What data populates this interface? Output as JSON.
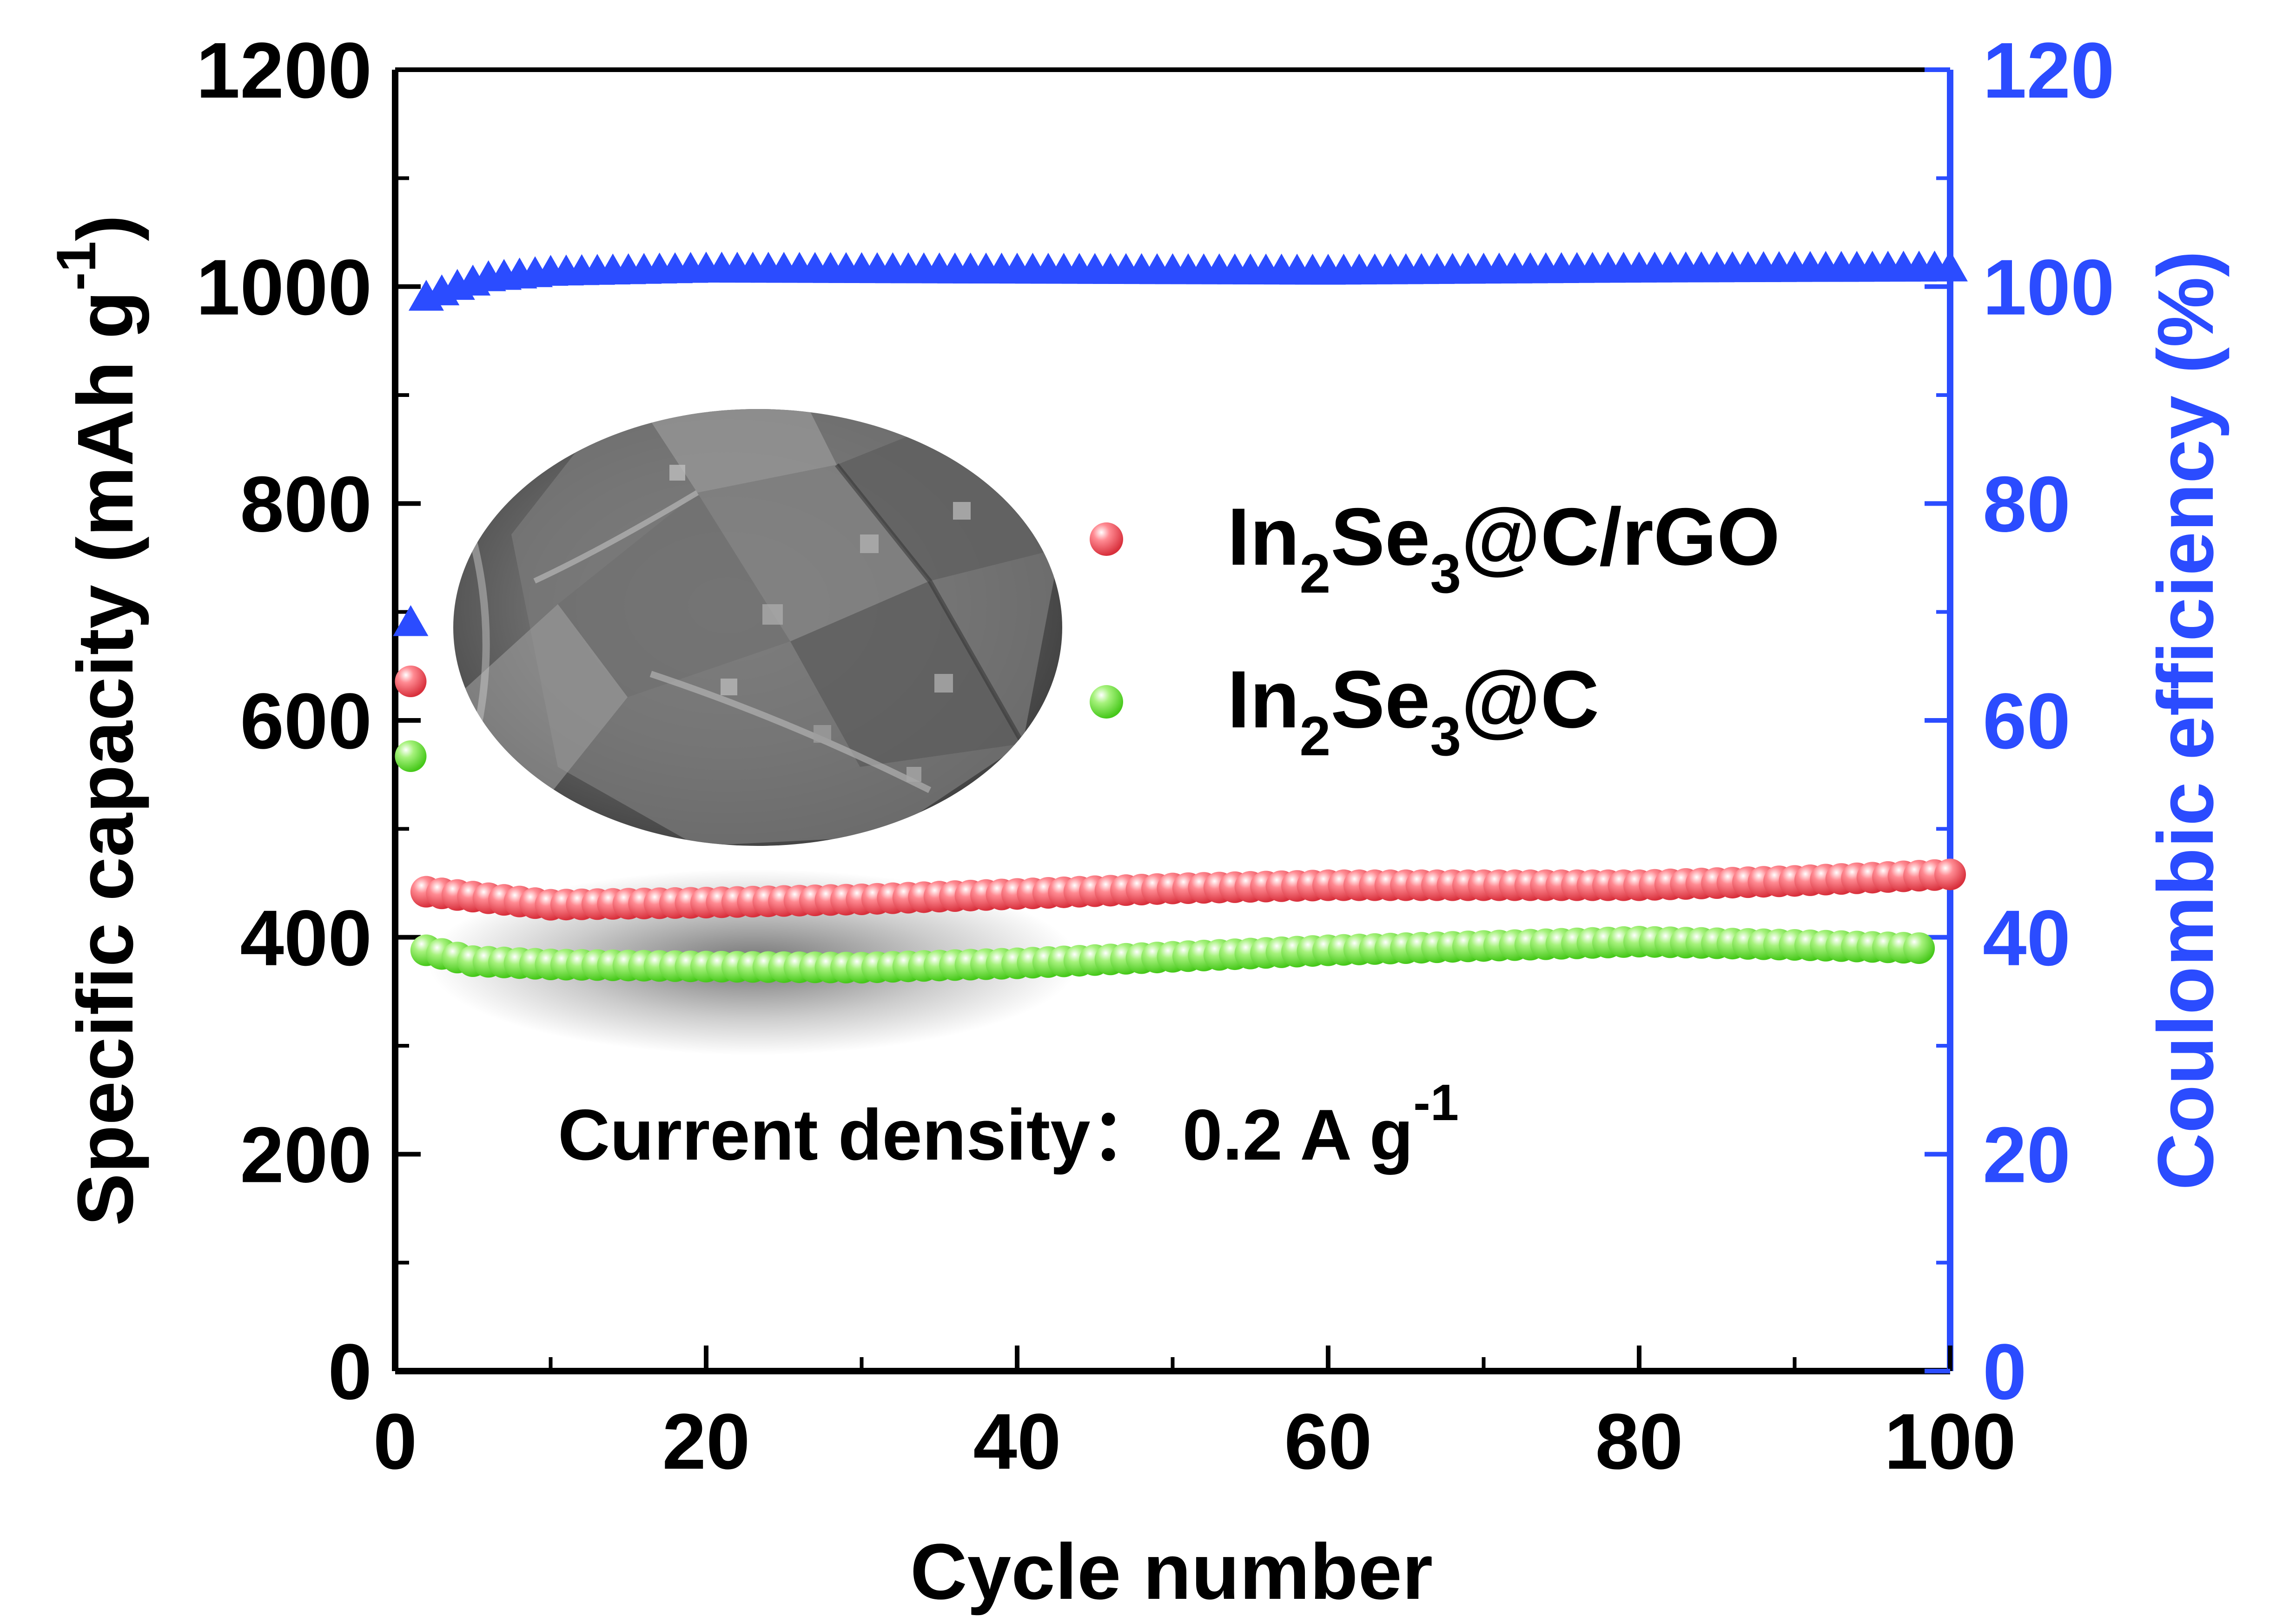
{
  "chart_data": {
    "type": "scatter",
    "annotation": {
      "main": "Current density： 0.2 A g",
      "sup": "-1"
    },
    "x_axis": {
      "label": "Cycle number",
      "range": [
        0,
        100
      ],
      "ticks": [
        0,
        20,
        40,
        60,
        80,
        100
      ]
    },
    "y_axis_left": {
      "label_main": "Specific capacity (mAh g",
      "label_sup": "-1",
      "label_end": ")",
      "range": [
        0,
        1200
      ],
      "ticks": [
        0,
        200,
        400,
        600,
        800,
        1000,
        1200
      ]
    },
    "y_axis_right": {
      "label": "Coulombic efficiency (%)",
      "range": [
        0,
        120
      ],
      "ticks": [
        0,
        20,
        40,
        60,
        80,
        100,
        120
      ],
      "color": "#2b4cff"
    },
    "legend": {
      "placement": "upper-center",
      "entries": [
        {
          "series": 0,
          "parts": [
            "In",
            "2",
            "Se",
            "3",
            "@C/rGO"
          ]
        },
        {
          "series": 1,
          "parts": [
            "In",
            "2",
            "Se",
            "3",
            "@C"
          ]
        }
      ]
    },
    "inset_image": "SEM micrograph of In2Se3@C/rGO particle",
    "series": [
      {
        "name": "In2Se3@C/rGO",
        "axis": "left",
        "marker": "sphere",
        "color": "#e8414d",
        "points": [
          [
            1,
            636
          ],
          [
            2,
            442
          ],
          [
            10,
            430
          ],
          [
            20,
            432
          ],
          [
            30,
            435
          ],
          [
            40,
            440
          ],
          [
            50,
            445
          ],
          [
            60,
            448
          ],
          [
            70,
            448
          ],
          [
            80,
            448
          ],
          [
            90,
            452
          ],
          [
            100,
            458
          ]
        ]
      },
      {
        "name": "In2Se3@C",
        "axis": "left",
        "marker": "sphere",
        "color": "#4ed81e",
        "points": [
          [
            1,
            567
          ],
          [
            2,
            388
          ],
          [
            5,
            378
          ],
          [
            10,
            375
          ],
          [
            20,
            373
          ],
          [
            30,
            372
          ],
          [
            40,
            376
          ],
          [
            50,
            382
          ],
          [
            60,
            388
          ],
          [
            70,
            392
          ],
          [
            80,
            396
          ],
          [
            90,
            393
          ],
          [
            98,
            390
          ]
        ]
      },
      {
        "name": "Coulombic efficiency",
        "axis": "right",
        "marker": "triangle",
        "color": "#2b4cff",
        "points": [
          [
            1,
            69
          ],
          [
            2,
            99
          ],
          [
            4,
            100
          ],
          [
            6,
            100.8
          ],
          [
            10,
            101.3
          ],
          [
            20,
            101.6
          ],
          [
            40,
            101.5
          ],
          [
            60,
            101.4
          ],
          [
            80,
            101.6
          ],
          [
            100,
            101.7
          ]
        ]
      }
    ]
  }
}
